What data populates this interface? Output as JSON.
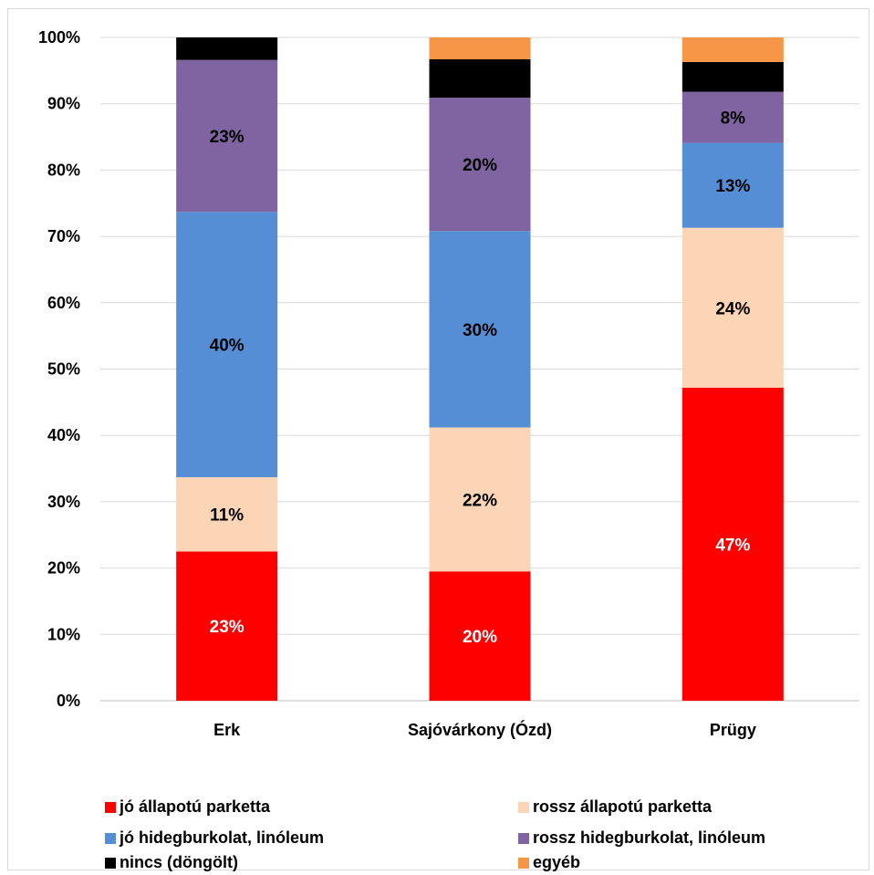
{
  "chart_data": {
    "type": "bar",
    "stacked": true,
    "normalized": true,
    "categories": [
      "Erk",
      "Sajóvárkony (Ózd)",
      "Prügy"
    ],
    "ylim": [
      0,
      100
    ],
    "yticks": [
      "0%",
      "10%",
      "20%",
      "30%",
      "40%",
      "50%",
      "60%",
      "70%",
      "80%",
      "90%",
      "100%"
    ],
    "grid": true,
    "legend_position": "bottom",
    "series": [
      {
        "name": "jó állapotú parketta",
        "color": "#ff0000",
        "label_color": "#ffffff",
        "values": [
          22.5,
          19.5,
          47.2
        ],
        "labels": [
          "23%",
          "20%",
          "47%"
        ]
      },
      {
        "name": "rossz állapotú parketta",
        "color": "#fbd5b5",
        "label_color": "#000000",
        "values": [
          11.2,
          21.7,
          24.1
        ],
        "labels": [
          "11%",
          "22%",
          "24%"
        ]
      },
      {
        "name": "jó hidegburkolat, linóleum",
        "color": "#558ed5",
        "label_color": "#000000",
        "values": [
          40.0,
          29.6,
          12.8
        ],
        "labels": [
          "40%",
          "30%",
          "13%"
        ]
      },
      {
        "name": "rossz hidegburkolat, linóleum",
        "color": "#8064a2",
        "label_color": "#000000",
        "values": [
          22.9,
          20.1,
          7.7
        ],
        "labels": [
          "23%",
          "20%",
          "8%"
        ]
      },
      {
        "name": "nincs (döngölt)",
        "color": "#000000",
        "label_color": "#ffffff",
        "values": [
          3.4,
          5.8,
          4.5
        ],
        "labels": [
          "",
          "",
          ""
        ]
      },
      {
        "name": "egyéb",
        "color": "#f79646",
        "label_color": "#000000",
        "values": [
          0.0,
          3.3,
          3.7
        ],
        "labels": [
          "",
          "",
          ""
        ]
      }
    ]
  }
}
